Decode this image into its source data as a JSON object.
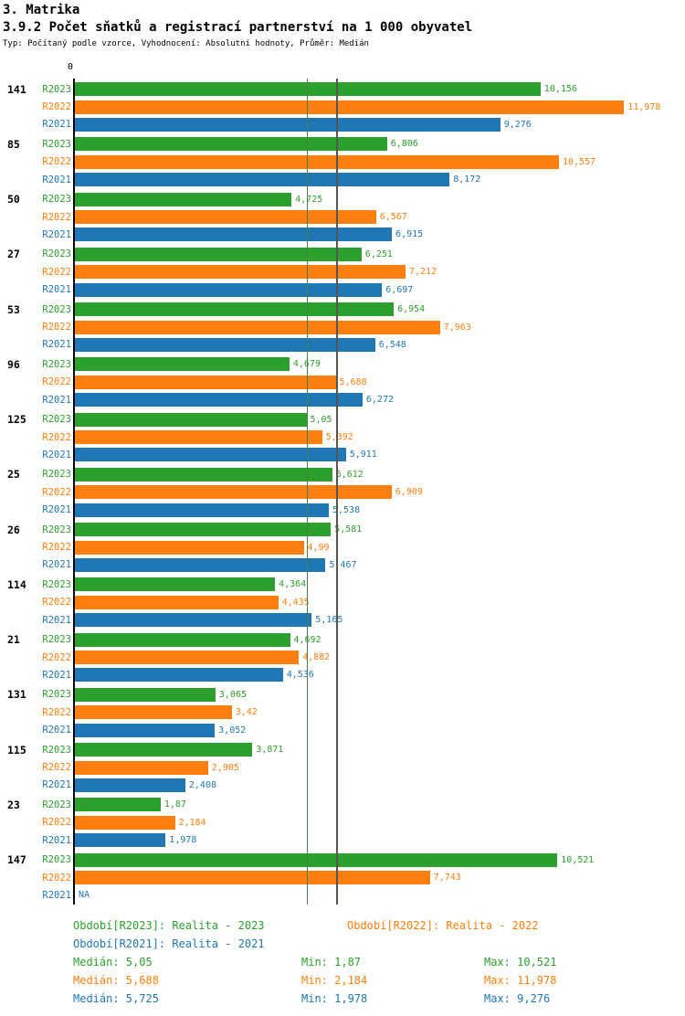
{
  "header": {
    "title": "3. Matrika",
    "subtitle": "3.9.2 Počet sňatků a registrací partnerství na 1 000 obyvatel",
    "meta": "Typ: Počítaný podle vzorce, Vyhodnocení: Absolutní hodnoty, Průměr: Medián"
  },
  "colors": {
    "R2023": "#2ca02c",
    "R2022": "#ff7f0e",
    "R2021": "#1f77b4"
  },
  "chart_data": {
    "type": "bar",
    "orientation": "horizontal",
    "axis_origin_label": "0",
    "xlim": [
      0,
      12.1
    ],
    "series_order": [
      "R2023",
      "R2022",
      "R2021"
    ],
    "groups": [
      {
        "label": "141",
        "bars": [
          {
            "series": "R2023",
            "value": 10.156,
            "text": "10,156"
          },
          {
            "series": "R2022",
            "value": 11.978,
            "text": "11,978"
          },
          {
            "series": "R2021",
            "value": 9.276,
            "text": "9,276"
          }
        ]
      },
      {
        "label": "85",
        "bars": [
          {
            "series": "R2023",
            "value": 6.806,
            "text": "6,806"
          },
          {
            "series": "R2022",
            "value": 10.557,
            "text": "10,557"
          },
          {
            "series": "R2021",
            "value": 8.172,
            "text": "8,172"
          }
        ]
      },
      {
        "label": "50",
        "bars": [
          {
            "series": "R2023",
            "value": 4.725,
            "text": "4,725"
          },
          {
            "series": "R2022",
            "value": 6.567,
            "text": "6,567"
          },
          {
            "series": "R2021",
            "value": 6.915,
            "text": "6,915"
          }
        ]
      },
      {
        "label": "27",
        "bars": [
          {
            "series": "R2023",
            "value": 6.251,
            "text": "6,251"
          },
          {
            "series": "R2022",
            "value": 7.212,
            "text": "7,212"
          },
          {
            "series": "R2021",
            "value": 6.697,
            "text": "6,697"
          }
        ]
      },
      {
        "label": "53",
        "bars": [
          {
            "series": "R2023",
            "value": 6.954,
            "text": "6,954"
          },
          {
            "series": "R2022",
            "value": 7.963,
            "text": "7,963"
          },
          {
            "series": "R2021",
            "value": 6.548,
            "text": "6,548"
          }
        ]
      },
      {
        "label": "96",
        "bars": [
          {
            "series": "R2023",
            "value": 4.679,
            "text": "4,679"
          },
          {
            "series": "R2022",
            "value": 5.688,
            "text": "5,688"
          },
          {
            "series": "R2021",
            "value": 6.272,
            "text": "6,272"
          }
        ]
      },
      {
        "label": "125",
        "bars": [
          {
            "series": "R2023",
            "value": 5.05,
            "text": "5,05"
          },
          {
            "series": "R2022",
            "value": 5.392,
            "text": "5,392"
          },
          {
            "series": "R2021",
            "value": 5.911,
            "text": "5,911"
          }
        ]
      },
      {
        "label": "25",
        "bars": [
          {
            "series": "R2023",
            "value": 5.612,
            "text": "5,612"
          },
          {
            "series": "R2022",
            "value": 6.909,
            "text": "6,909"
          },
          {
            "series": "R2021",
            "value": 5.538,
            "text": "5,538"
          }
        ]
      },
      {
        "label": "26",
        "bars": [
          {
            "series": "R2023",
            "value": 5.581,
            "text": "5,581"
          },
          {
            "series": "R2022",
            "value": 4.99,
            "text": "4,99"
          },
          {
            "series": "R2021",
            "value": 5.467,
            "text": "5,467"
          }
        ]
      },
      {
        "label": "114",
        "bars": [
          {
            "series": "R2023",
            "value": 4.364,
            "text": "4,364"
          },
          {
            "series": "R2022",
            "value": 4.435,
            "text": "4,435"
          },
          {
            "series": "R2021",
            "value": 5.165,
            "text": "5,165"
          }
        ]
      },
      {
        "label": "21",
        "bars": [
          {
            "series": "R2023",
            "value": 4.692,
            "text": "4,692"
          },
          {
            "series": "R2022",
            "value": 4.882,
            "text": "4,882"
          },
          {
            "series": "R2021",
            "value": 4.536,
            "text": "4,536"
          }
        ]
      },
      {
        "label": "131",
        "bars": [
          {
            "series": "R2023",
            "value": 3.065,
            "text": "3,065"
          },
          {
            "series": "R2022",
            "value": 3.42,
            "text": "3,42"
          },
          {
            "series": "R2021",
            "value": 3.052,
            "text": "3,052"
          }
        ]
      },
      {
        "label": "115",
        "bars": [
          {
            "series": "R2023",
            "value": 3.871,
            "text": "3,871"
          },
          {
            "series": "R2022",
            "value": 2.905,
            "text": "2,905"
          },
          {
            "series": "R2021",
            "value": 2.408,
            "text": "2,408"
          }
        ]
      },
      {
        "label": "23",
        "bars": [
          {
            "series": "R2023",
            "value": 1.87,
            "text": "1,87"
          },
          {
            "series": "R2022",
            "value": 2.184,
            "text": "2,184"
          },
          {
            "series": "R2021",
            "value": 1.978,
            "text": "1,978"
          }
        ]
      },
      {
        "label": "147",
        "bars": [
          {
            "series": "R2023",
            "value": 10.521,
            "text": "10,521"
          },
          {
            "series": "R2022",
            "value": 7.743,
            "text": "7,743"
          },
          {
            "series": "R2021",
            "value": null,
            "text": "NA"
          }
        ]
      }
    ],
    "median_lines": [
      {
        "series": "R2023",
        "value": 5.05,
        "color": "#4a7d4a"
      },
      {
        "series": "R2022",
        "value": 5.688,
        "color": "#6e5233"
      },
      {
        "series": "R2021",
        "value": 5.725,
        "color": "#3c5a73"
      }
    ]
  },
  "footer": {
    "legend": {
      "r2023": "Období[R2023]: Realita - 2023",
      "r2022": "Období[R2022]: Realita - 2022",
      "r2021": "Období[R2021]: Realita - 2021"
    },
    "stats": {
      "r2023": {
        "median": "Medián: 5,05",
        "min": "Min: 1,87",
        "max": "Max: 10,521"
      },
      "r2022": {
        "median": "Medián: 5,688",
        "min": "Min: 2,184",
        "max": "Max: 11,978"
      },
      "r2021": {
        "median": "Medián: 5,725",
        "min": "Min: 1,978",
        "max": "Max: 9,276"
      }
    }
  }
}
